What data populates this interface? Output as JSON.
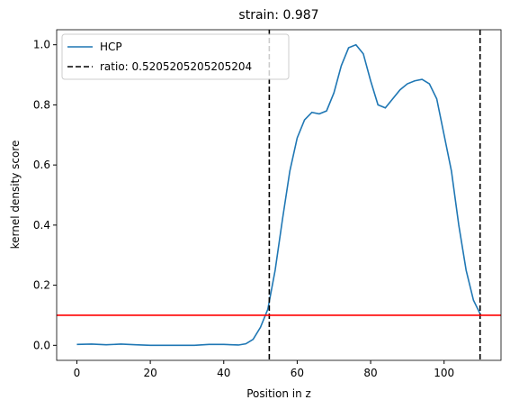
{
  "chart_data": {
    "type": "line",
    "title": "strain: 0.987",
    "xlabel": "Position in z",
    "ylabel": "kernel density score",
    "x": [
      0,
      4,
      8,
      12,
      16,
      20,
      24,
      28,
      32,
      36,
      40,
      44,
      46,
      48,
      50,
      52,
      54,
      56,
      58,
      60,
      62,
      64,
      66,
      68,
      70,
      72,
      74,
      76,
      78,
      80,
      82,
      84,
      86,
      88,
      90,
      92,
      94,
      96,
      98,
      100,
      102,
      104,
      106,
      108,
      110
    ],
    "series": [
      {
        "name": "HCP",
        "color": "#1f77b4",
        "values": [
          0.003,
          0.004,
          0.002,
          0.004,
          0.002,
          0.0,
          0.0,
          0.0,
          0.0,
          0.003,
          0.003,
          0.001,
          0.005,
          0.02,
          0.06,
          0.12,
          0.25,
          0.42,
          0.58,
          0.69,
          0.75,
          0.775,
          0.77,
          0.78,
          0.84,
          0.93,
          0.99,
          1.0,
          0.97,
          0.88,
          0.8,
          0.79,
          0.82,
          0.85,
          0.87,
          0.88,
          0.885,
          0.87,
          0.82,
          0.7,
          0.58,
          0.4,
          0.25,
          0.15,
          0.1
        ]
      }
    ],
    "vlines": {
      "name": "ratio: 0.5205205205205204",
      "color": "#000000",
      "x": [
        52.4,
        109.8
      ]
    },
    "hline": {
      "y": 0.1,
      "color": "#ff0000"
    },
    "xlim": [
      -5.5,
      115.5
    ],
    "ylim": [
      -0.05,
      1.05
    ],
    "xticks": [
      0,
      20,
      40,
      60,
      80,
      100
    ],
    "yticks": [
      {
        "value": 0,
        "label": "0.0"
      },
      0.2,
      0.4,
      0.6,
      0.8,
      {
        "value": 1,
        "label": "1.0"
      }
    ],
    "legend": "upper left"
  }
}
